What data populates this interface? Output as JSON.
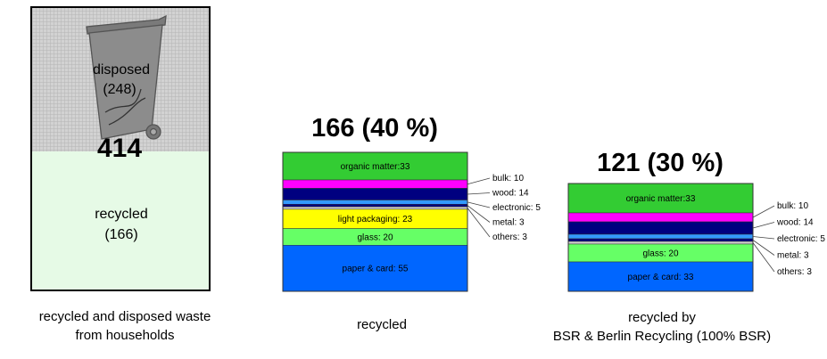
{
  "chart_data": [
    {
      "type": "stacked-bar",
      "title": "414",
      "caption": [
        "recycled and disposed waste",
        "from households"
      ],
      "segments": [
        {
          "label": "disposed",
          "value": 248,
          "value_text": "(248)",
          "color": "#c8c8c8"
        },
        {
          "label": "recycled",
          "value": 166,
          "value_text": "(166)",
          "color": "#e6fae6"
        }
      ],
      "icon": "waste-bin-icon"
    },
    {
      "type": "stacked-bar",
      "title": "166 (40 %)",
      "caption": [
        "recycled"
      ],
      "total": 166,
      "segments": [
        {
          "label": "organic matter:33",
          "value": 33,
          "color": "#33cc33",
          "inside": true
        },
        {
          "label": "bulk: 10",
          "value": 10,
          "color": "#ff00ff",
          "inside": false
        },
        {
          "label": "wood: 14",
          "value": 14,
          "color": "#000080",
          "inside": false
        },
        {
          "label": "electronic: 5",
          "value": 5,
          "color": "#3399ff",
          "inside": false
        },
        {
          "label": "metal: 3",
          "value": 3,
          "color": "#000080",
          "inside": false
        },
        {
          "label": "others: 3",
          "value": 3,
          "color": "#cccccc",
          "inside": false
        },
        {
          "label": "light packaging: 23",
          "value": 23,
          "color": "#ffff00",
          "inside": true
        },
        {
          "label": "glass: 20",
          "value": 20,
          "color": "#66ff66",
          "inside": true
        },
        {
          "label": "paper & card: 55",
          "value": 55,
          "color": "#0066ff",
          "inside": true
        }
      ]
    },
    {
      "type": "stacked-bar",
      "title": "121 (30 %)",
      "caption": [
        "recycled by",
        "BSR & Berlin Recycling (100% BSR)"
      ],
      "total": 121,
      "segments": [
        {
          "label": "organic matter:33",
          "value": 33,
          "color": "#33cc33",
          "inside": true
        },
        {
          "label": "bulk: 10",
          "value": 10,
          "color": "#ff00ff",
          "inside": false
        },
        {
          "label": "wood: 14",
          "value": 14,
          "color": "#000080",
          "inside": false
        },
        {
          "label": "electronic: 5",
          "value": 5,
          "color": "#3399ff",
          "inside": false
        },
        {
          "label": "metal: 3",
          "value": 3,
          "color": "#000080",
          "inside": false
        },
        {
          "label": "others: 3",
          "value": 3,
          "color": "#cccccc",
          "inside": false
        },
        {
          "label": "glass: 20",
          "value": 20,
          "color": "#66ff66",
          "inside": true
        },
        {
          "label": "paper & card: 33",
          "value": 33,
          "color": "#0066ff",
          "inside": true
        }
      ]
    }
  ]
}
